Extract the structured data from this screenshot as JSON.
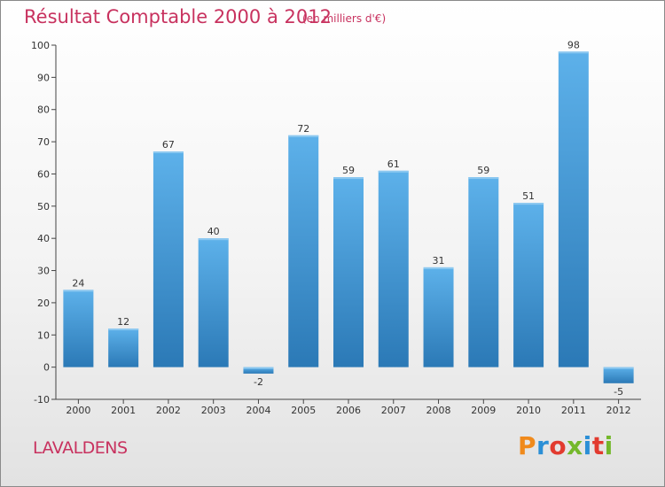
{
  "header": {
    "title": "Résultat Comptable 2000 à 2012",
    "subtitle": "(en milliers d'€)"
  },
  "footer": {
    "commune": "LAVALDENS",
    "logo_text": "Proxiti",
    "logo_colors": [
      "#f08a1c",
      "#2b8fd6",
      "#e23b2f",
      "#74b82b",
      "#2b8fd6",
      "#e23b2f",
      "#74b82b"
    ]
  },
  "colors": {
    "bar_light": "#5aaee6",
    "bar_dark": "#2a7ab8",
    "title": "#c8325f",
    "axis": "#333333"
  },
  "chart_data": {
    "type": "bar",
    "title": "Résultat Comptable 2000 à 2012",
    "subtitle": "(en milliers d'€)",
    "categories": [
      "2000",
      "2001",
      "2002",
      "2003",
      "2004",
      "2005",
      "2006",
      "2007",
      "2008",
      "2009",
      "2010",
      "2011",
      "2012"
    ],
    "values": [
      24,
      12,
      67,
      40,
      -2,
      72,
      59,
      61,
      31,
      59,
      51,
      98,
      -5
    ],
    "ylim": [
      -10,
      100
    ],
    "yticks": [
      -10,
      0,
      10,
      20,
      30,
      40,
      50,
      60,
      70,
      80,
      90,
      100
    ],
    "grid": false,
    "data_labels": true
  }
}
